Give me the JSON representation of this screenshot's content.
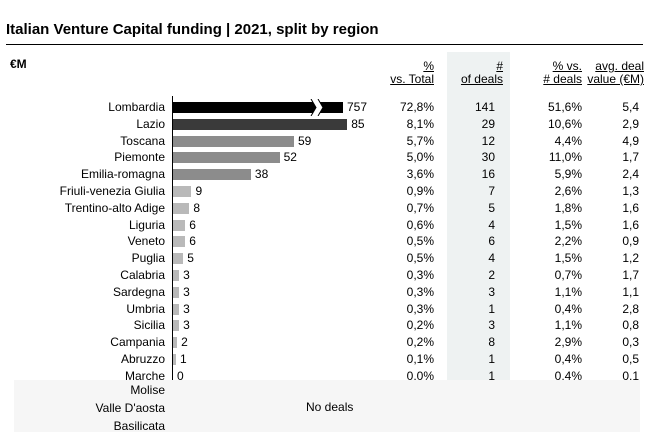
{
  "title": "Italian Venture Capital funding | 2021, split by region",
  "unit": "€M",
  "headers": {
    "pct_total": [
      "%",
      "vs. Total"
    ],
    "deals": [
      "#",
      "of deals"
    ],
    "pct_deals": [
      "% vs.",
      "# deals"
    ],
    "avg_value": [
      "avg. deal",
      "value (€M)"
    ]
  },
  "no_deals_text": "No deals",
  "no_deal_regions": [
    "Molise",
    "Valle D'aosta",
    "Basilicata"
  ],
  "colors": {
    "top": "#000000",
    "dark": "#3a3a3a",
    "medium": "#8c8c8c",
    "light": "#b9b9b9",
    "shade": "#eef2f2"
  },
  "chart_data": {
    "type": "bar",
    "orientation": "horizontal",
    "title": "Italian Venture Capital funding | 2021, split by region",
    "unit": "€M",
    "axis_break": "Lombardia bar is truncated",
    "categories": [
      "Lombardia",
      "Lazio",
      "Toscana",
      "Piemonte",
      "Emilia-romagna",
      "Friuli-venezia Giulia",
      "Trentino-alto Adige",
      "Liguria",
      "Veneto",
      "Puglia",
      "Calabria",
      "Sardegna",
      "Umbria",
      "Sicilia",
      "Campania",
      "Abruzzo",
      "Marche"
    ],
    "values": [
      757,
      85,
      59,
      52,
      38,
      9,
      8,
      6,
      6,
      5,
      3,
      3,
      3,
      3,
      2,
      1,
      0
    ],
    "table": {
      "pct_total": [
        "72,8%",
        "8,1%",
        "5,7%",
        "5,0%",
        "3,6%",
        "0,9%",
        "0,7%",
        "0,6%",
        "0,5%",
        "0,5%",
        "0,3%",
        "0,3%",
        "0,3%",
        "0,2%",
        "0,2%",
        "0,1%",
        "0,0%"
      ],
      "deals": [
        "141",
        "29",
        "12",
        "30",
        "16",
        "7",
        "5",
        "4",
        "6",
        "4",
        "2",
        "3",
        "1",
        "3",
        "8",
        "1",
        "1"
      ],
      "pct_deals": [
        "51,6%",
        "10,6%",
        "4,4%",
        "11,0%",
        "5,9%",
        "2,6%",
        "1,8%",
        "1,5%",
        "2,2%",
        "1,5%",
        "0,7%",
        "1,1%",
        "0,4%",
        "1,1%",
        "2,9%",
        "0,4%",
        "0,4%"
      ],
      "avg_value": [
        "5,4",
        "2,9",
        "4,9",
        "1,7",
        "2,4",
        "1,3",
        "1,6",
        "1,6",
        "0,9",
        "1,2",
        "1,7",
        "1,1",
        "2,8",
        "0,8",
        "0,3",
        "0,5",
        "0,1"
      ]
    }
  }
}
